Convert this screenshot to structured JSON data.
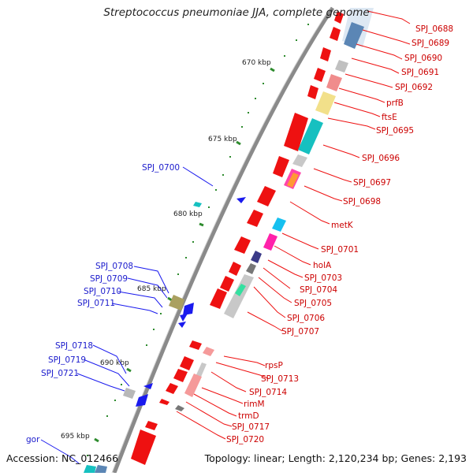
{
  "title": "Streptococcus pneumoniae JJA, complete genome",
  "footer": {
    "accession": "Accession: NC_012466",
    "summary": "Topology: linear; Length: 2,120,234 bp; Genes: 2,193"
  },
  "colors": {
    "backbone": "#7a7a7a",
    "tick": "#2e8b2e",
    "forward_label": "#cc0000",
    "reverse_label": "#1a1acc"
  },
  "ticks": [
    "670 kbp",
    "675 kbp",
    "680 kbp",
    "685 kbp",
    "690 kbp",
    "695 kbp"
  ],
  "forward_labels": [
    "SPJ_0688",
    "SPJ_0689",
    "SPJ_0690",
    "SPJ_0691",
    "SPJ_0692",
    "prfB",
    "ftsE",
    "SPJ_0695",
    "SPJ_0696",
    "SPJ_0697",
    "SPJ_0698",
    "metK",
    "SPJ_0701",
    "holA",
    "SPJ_0703",
    "SPJ_0704",
    "SPJ_0705",
    "SPJ_0706",
    "SPJ_0707",
    "rpsP",
    "SPJ_0713",
    "SPJ_0714",
    "rimM",
    "trmD",
    "SPJ_0717",
    "SPJ_0720"
  ],
  "reverse_labels": [
    "SPJ_0700",
    "SPJ_0708",
    "SPJ_0709",
    "SPJ_0710",
    "SPJ_0711",
    "SPJ_0718",
    "SPJ_0719",
    "SPJ_0721",
    "gor"
  ]
}
